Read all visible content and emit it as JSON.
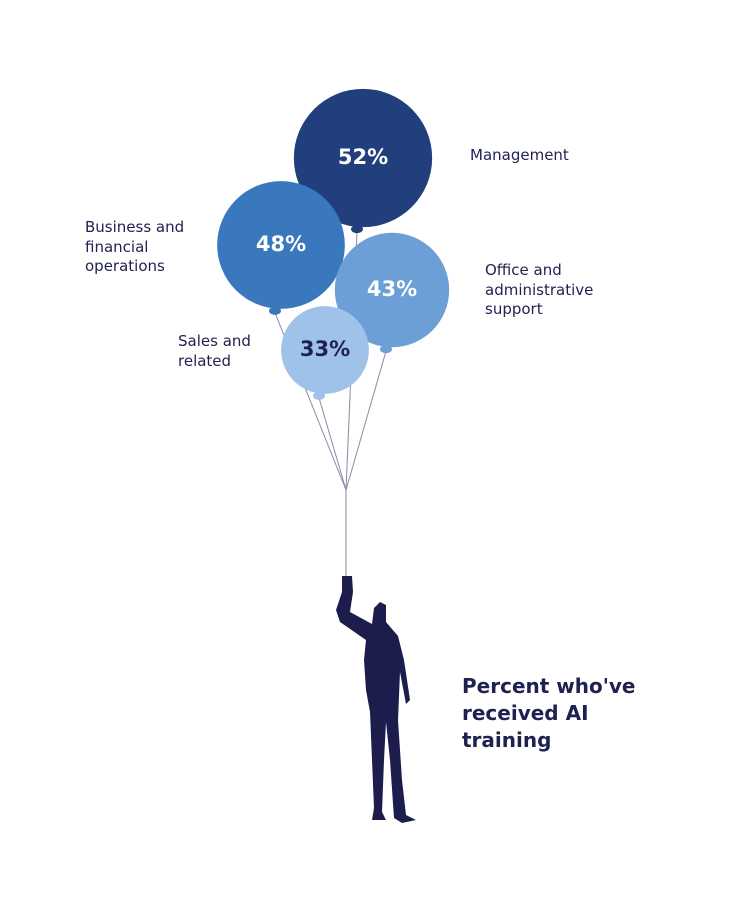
{
  "chart_data": {
    "type": "balloon",
    "title": "Percent who've received AI training",
    "categories": [
      "Management",
      "Business and financial operations",
      "Office and administrative support",
      "Sales and related"
    ],
    "values": [
      52,
      48,
      43,
      33
    ],
    "value_labels": [
      "52%",
      "48%",
      "43%",
      "33%"
    ],
    "colors": [
      "#223f7d",
      "#3a78be",
      "#6c9fd5",
      "#9fc2e9"
    ]
  }
}
